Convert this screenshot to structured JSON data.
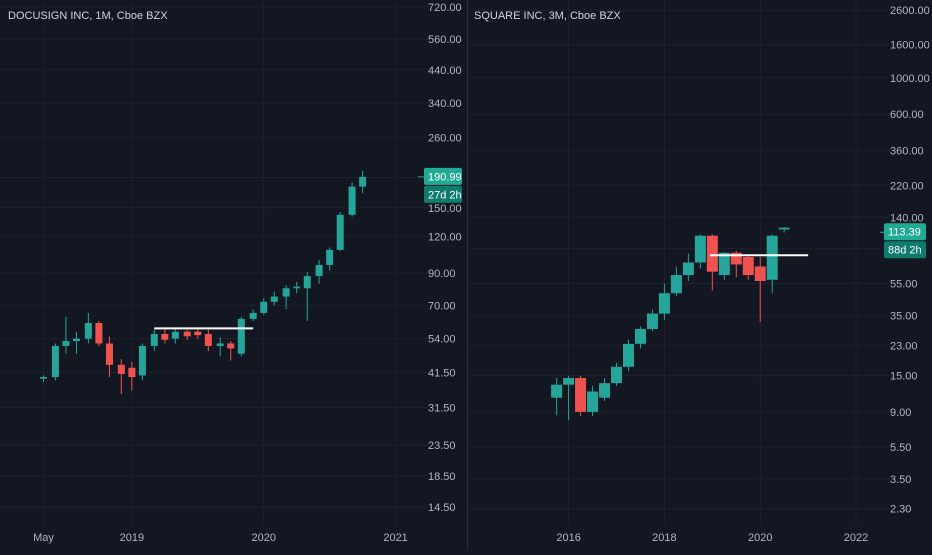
{
  "colors": {
    "background": "#131722",
    "grid": "#1e2230",
    "up": "#26a69a",
    "down": "#ef5350",
    "text": "#b2b5be",
    "title": "#d1d4dc",
    "badge_up": "#22ab94",
    "badge_dark": "#0f7b6c",
    "level_line": "#ffffff"
  },
  "chart_data": [
    {
      "type": "candlestick",
      "title": "DOCUSIGN INC, 1M, Cboe BZX",
      "scale": "log",
      "ylim": [
        12.5,
        760
      ],
      "xlim": [
        2018.0,
        2021.17
      ],
      "y_ticks": [
        {
          "label": "720.00",
          "value": 720
        },
        {
          "label": "560.00",
          "value": 560
        },
        {
          "label": "440.00",
          "value": 440
        },
        {
          "label": "340.00",
          "value": 340
        },
        {
          "label": "260.00",
          "value": 260
        },
        {
          "label": "190.00",
          "value": 190
        },
        {
          "label": "150.00",
          "value": 150
        },
        {
          "label": "120.00",
          "value": 120
        },
        {
          "label": "90.00",
          "value": 90
        },
        {
          "label": "70.00",
          "value": 70
        },
        {
          "label": "54.00",
          "value": 54
        },
        {
          "label": "41.50",
          "value": 41.5
        },
        {
          "label": "31.50",
          "value": 31.5
        },
        {
          "label": "23.50",
          "value": 23.5
        },
        {
          "label": "18.50",
          "value": 18.5
        },
        {
          "label": "14.50",
          "value": 14.5
        }
      ],
      "x_ticks": [
        {
          "label": "May",
          "value": 2018.33
        },
        {
          "label": "2019",
          "value": 2019.0
        },
        {
          "label": "2020",
          "value": 2020.0
        },
        {
          "label": "2021",
          "value": 2021.0
        }
      ],
      "candles": [
        {
          "t": 2018.33,
          "o": 39.5,
          "h": 40.5,
          "l": 38.5,
          "c": 40.0
        },
        {
          "t": 2018.42,
          "o": 40.0,
          "h": 52.0,
          "l": 39.0,
          "c": 51.0
        },
        {
          "t": 2018.5,
          "o": 51.0,
          "h": 64.0,
          "l": 48.0,
          "c": 53.0
        },
        {
          "t": 2018.58,
          "o": 53.0,
          "h": 57.0,
          "l": 48.0,
          "c": 54.0
        },
        {
          "t": 2018.67,
          "o": 54.0,
          "h": 66.0,
          "l": 52.0,
          "c": 61.0
        },
        {
          "t": 2018.75,
          "o": 61.0,
          "h": 62.0,
          "l": 51.0,
          "c": 52.0
        },
        {
          "t": 2018.83,
          "o": 52.0,
          "h": 55.0,
          "l": 40.0,
          "c": 44.0
        },
        {
          "t": 2018.92,
          "o": 44.0,
          "h": 46.0,
          "l": 35.0,
          "c": 41.0
        },
        {
          "t": 2019.0,
          "o": 43.0,
          "h": 45.0,
          "l": 36.0,
          "c": 40.0
        },
        {
          "t": 2019.08,
          "o": 40.5,
          "h": 52.0,
          "l": 39.0,
          "c": 51.0
        },
        {
          "t": 2019.17,
          "o": 51.0,
          "h": 58.0,
          "l": 49.0,
          "c": 56.0
        },
        {
          "t": 2019.25,
          "o": 56.0,
          "h": 58.0,
          "l": 52.0,
          "c": 53.5
        },
        {
          "t": 2019.33,
          "o": 54.0,
          "h": 59.0,
          "l": 52.0,
          "c": 57.0
        },
        {
          "t": 2019.42,
          "o": 57.0,
          "h": 59.0,
          "l": 53.5,
          "c": 55.0
        },
        {
          "t": 2019.5,
          "o": 57.0,
          "h": 59.0,
          "l": 54.0,
          "c": 55.5
        },
        {
          "t": 2019.58,
          "o": 56.0,
          "h": 58.0,
          "l": 49.0,
          "c": 51.0
        },
        {
          "t": 2019.67,
          "o": 51.0,
          "h": 54.5,
          "l": 47.0,
          "c": 52.0
        },
        {
          "t": 2019.75,
          "o": 52.0,
          "h": 53.0,
          "l": 45.5,
          "c": 50.0
        },
        {
          "t": 2019.83,
          "o": 48.0,
          "h": 64.0,
          "l": 47.0,
          "c": 63.0
        },
        {
          "t": 2019.92,
          "o": 63.0,
          "h": 68.0,
          "l": 62.0,
          "c": 66.0
        },
        {
          "t": 2020.0,
          "o": 66.0,
          "h": 74.0,
          "l": 65.0,
          "c": 72.0
        },
        {
          "t": 2020.08,
          "o": 72.0,
          "h": 78.0,
          "l": 70.0,
          "c": 75.0
        },
        {
          "t": 2020.17,
          "o": 75.0,
          "h": 82.0,
          "l": 68.0,
          "c": 80.0
        },
        {
          "t": 2020.25,
          "o": 80.0,
          "h": 84.0,
          "l": 77.0,
          "c": 81.0
        },
        {
          "t": 2020.33,
          "o": 80.0,
          "h": 91.0,
          "l": 62.0,
          "c": 88.0
        },
        {
          "t": 2020.42,
          "o": 88.0,
          "h": 100.0,
          "l": 83.0,
          "c": 96.0
        },
        {
          "t": 2020.5,
          "o": 96.0,
          "h": 110.0,
          "l": 92.0,
          "c": 108.0
        },
        {
          "t": 2020.58,
          "o": 108.0,
          "h": 145.0,
          "l": 107.0,
          "c": 142.0
        },
        {
          "t": 2020.67,
          "o": 142.0,
          "h": 183.0,
          "l": 140.0,
          "c": 177.0
        },
        {
          "t": 2020.75,
          "o": 177.0,
          "h": 200.0,
          "l": 168.0,
          "c": 191.0
        }
      ],
      "level_line": {
        "value": 58.5,
        "x_start": 2019.17,
        "x_end": 2019.92
      },
      "badges": [
        {
          "text": "190.99",
          "value": 190.99,
          "style": "up"
        },
        {
          "text": "27d 2h",
          "value": 168,
          "style": "dark"
        }
      ]
    },
    {
      "type": "candlestick",
      "title": "SQUARE INC, 3M, Cboe BZX",
      "scale": "log",
      "ylim": [
        1.8,
        3000
      ],
      "xlim": [
        2013.9,
        2022.5
      ],
      "y_ticks": [
        {
          "label": "2600.00",
          "value": 2600
        },
        {
          "label": "1600.00",
          "value": 1600
        },
        {
          "label": "1000.00",
          "value": 1000
        },
        {
          "label": "600.00",
          "value": 600
        },
        {
          "label": "360.00",
          "value": 360
        },
        {
          "label": "220.00",
          "value": 220
        },
        {
          "label": "140.00",
          "value": 140
        },
        {
          "label": "90.00",
          "value": 90
        },
        {
          "label": "55.00",
          "value": 55
        },
        {
          "label": "35.00",
          "value": 35
        },
        {
          "label": "23.00",
          "value": 23
        },
        {
          "label": "15.00",
          "value": 15
        },
        {
          "label": "9.00",
          "value": 9
        },
        {
          "label": "5.50",
          "value": 5.5
        },
        {
          "label": "3.50",
          "value": 3.5
        },
        {
          "label": "2.30",
          "value": 2.3
        }
      ],
      "x_ticks": [
        {
          "label": "2016",
          "value": 2016
        },
        {
          "label": "2018",
          "value": 2018
        },
        {
          "label": "2020",
          "value": 2020
        },
        {
          "label": "2022",
          "value": 2022
        }
      ],
      "candles": [
        {
          "t": 2015.75,
          "o": 11.0,
          "h": 14.5,
          "l": 8.6,
          "c": 13.2
        },
        {
          "t": 2016.0,
          "o": 13.2,
          "h": 15.0,
          "l": 8.0,
          "c": 14.5
        },
        {
          "t": 2016.25,
          "o": 14.5,
          "h": 15.0,
          "l": 8.5,
          "c": 9.0
        },
        {
          "t": 2016.5,
          "o": 9.0,
          "h": 13.0,
          "l": 8.5,
          "c": 12.0
        },
        {
          "t": 2016.75,
          "o": 11.0,
          "h": 14.5,
          "l": 10.5,
          "c": 13.5
        },
        {
          "t": 2017.0,
          "o": 13.5,
          "h": 18.0,
          "l": 13.0,
          "c": 17.0
        },
        {
          "t": 2017.25,
          "o": 17.0,
          "h": 25.0,
          "l": 16.0,
          "c": 23.5
        },
        {
          "t": 2017.5,
          "o": 23.5,
          "h": 30.0,
          "l": 22.0,
          "c": 29.0
        },
        {
          "t": 2017.75,
          "o": 29.0,
          "h": 38.0,
          "l": 28.0,
          "c": 36.0
        },
        {
          "t": 2018.0,
          "o": 36.0,
          "h": 55.0,
          "l": 33.0,
          "c": 48.0
        },
        {
          "t": 2018.25,
          "o": 48.0,
          "h": 70.0,
          "l": 46.0,
          "c": 62.0
        },
        {
          "t": 2018.5,
          "o": 62.0,
          "h": 84.0,
          "l": 57.0,
          "c": 74.0
        },
        {
          "t": 2018.75,
          "o": 74.0,
          "h": 110.0,
          "l": 68.0,
          "c": 108.0
        },
        {
          "t": 2019.0,
          "o": 108.0,
          "h": 110.0,
          "l": 50.0,
          "c": 65.0
        },
        {
          "t": 2019.25,
          "o": 62.0,
          "h": 86.0,
          "l": 58.0,
          "c": 85.0
        },
        {
          "t": 2019.5,
          "o": 85.0,
          "h": 87.0,
          "l": 60.0,
          "c": 72.0
        },
        {
          "t": 2019.75,
          "o": 80.0,
          "h": 82.0,
          "l": 58.0,
          "c": 62.0
        },
        {
          "t": 2020.0,
          "o": 70.0,
          "h": 80.0,
          "l": 32.0,
          "c": 57.0
        },
        {
          "t": 2020.25,
          "o": 58.0,
          "h": 110.0,
          "l": 48.0,
          "c": 108.0
        },
        {
          "t": 2020.5,
          "o": 118.0,
          "h": 122.0,
          "l": 113.0,
          "c": 121.0
        }
      ],
      "level_line": {
        "value": 82.0,
        "x_start": 2018.95,
        "x_end": 2021.0
      },
      "badges": [
        {
          "text": "113.39",
          "value": 113.39,
          "style": "up"
        },
        {
          "text": "88d 2h",
          "value": 88,
          "style": "dark"
        }
      ]
    }
  ]
}
